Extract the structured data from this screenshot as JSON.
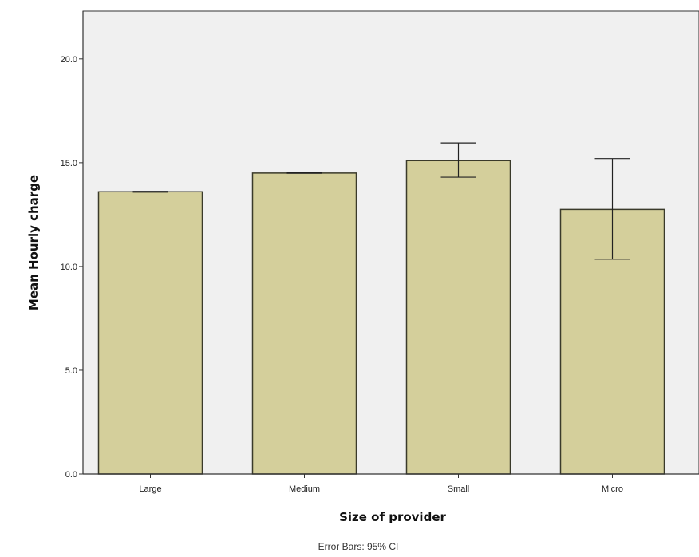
{
  "chart_data": {
    "type": "bar",
    "categories": [
      "Large",
      "Medium",
      "Small",
      "Micro"
    ],
    "values": [
      13.6,
      14.5,
      15.1,
      12.75
    ],
    "error_bars": {
      "label": "Error Bars: 95% CI",
      "lower": [
        13.58,
        14.49,
        14.3,
        10.35
      ],
      "upper": [
        13.62,
        14.51,
        15.95,
        15.2
      ]
    },
    "title": "",
    "xlabel": "Size of provider",
    "ylabel": "Mean Hourly charge",
    "ylim": [
      0,
      22.3
    ],
    "yticks": [
      0,
      5,
      10,
      15,
      20
    ],
    "ytick_labels": [
      "0.0",
      "5.0",
      "10.0",
      "15.0",
      "20.0"
    ],
    "grid": false,
    "colors": {
      "bar_fill": "#d4cf9b",
      "bar_stroke": "#3a3a2a",
      "plot_bg": "#f0f0f0",
      "axis": "#333333"
    }
  }
}
